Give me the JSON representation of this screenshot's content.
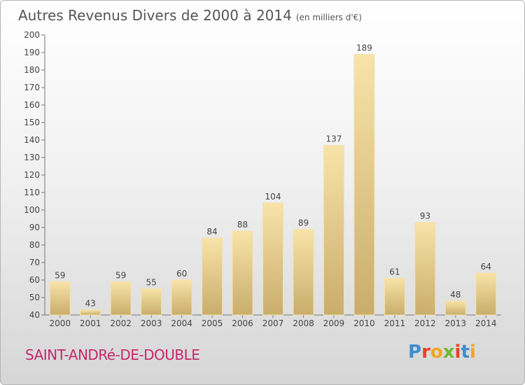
{
  "chart_data": {
    "type": "bar",
    "title": "Autres Revenus Divers de 2000 à 2014",
    "subtitle": "(en milliers d'€)",
    "categories": [
      "2000",
      "2001",
      "2002",
      "2003",
      "2004",
      "2005",
      "2006",
      "2007",
      "2008",
      "2009",
      "2010",
      "2011",
      "2012",
      "2013",
      "2014"
    ],
    "values": [
      59,
      43,
      59,
      55,
      60,
      84,
      88,
      104,
      89,
      137,
      189,
      61,
      93,
      48,
      64
    ],
    "ylim": [
      40,
      200
    ],
    "yticks": [
      40,
      50,
      60,
      70,
      80,
      90,
      100,
      110,
      120,
      130,
      140,
      150,
      160,
      170,
      180,
      190,
      200
    ],
    "grid": false,
    "bar_color": "#e8cf8c"
  },
  "footer": {
    "town": "SAINT-ANDRé-DE-DOUBLE",
    "logo_letters": [
      "P",
      "r",
      "o",
      "x",
      "i",
      "t",
      "i"
    ],
    "logo_colors": [
      "#3a8fd0",
      "#e8412b",
      "#f2a51e",
      "#6dbb2f",
      "#e8412b",
      "#3a8fd0",
      "#f2a51e"
    ]
  }
}
